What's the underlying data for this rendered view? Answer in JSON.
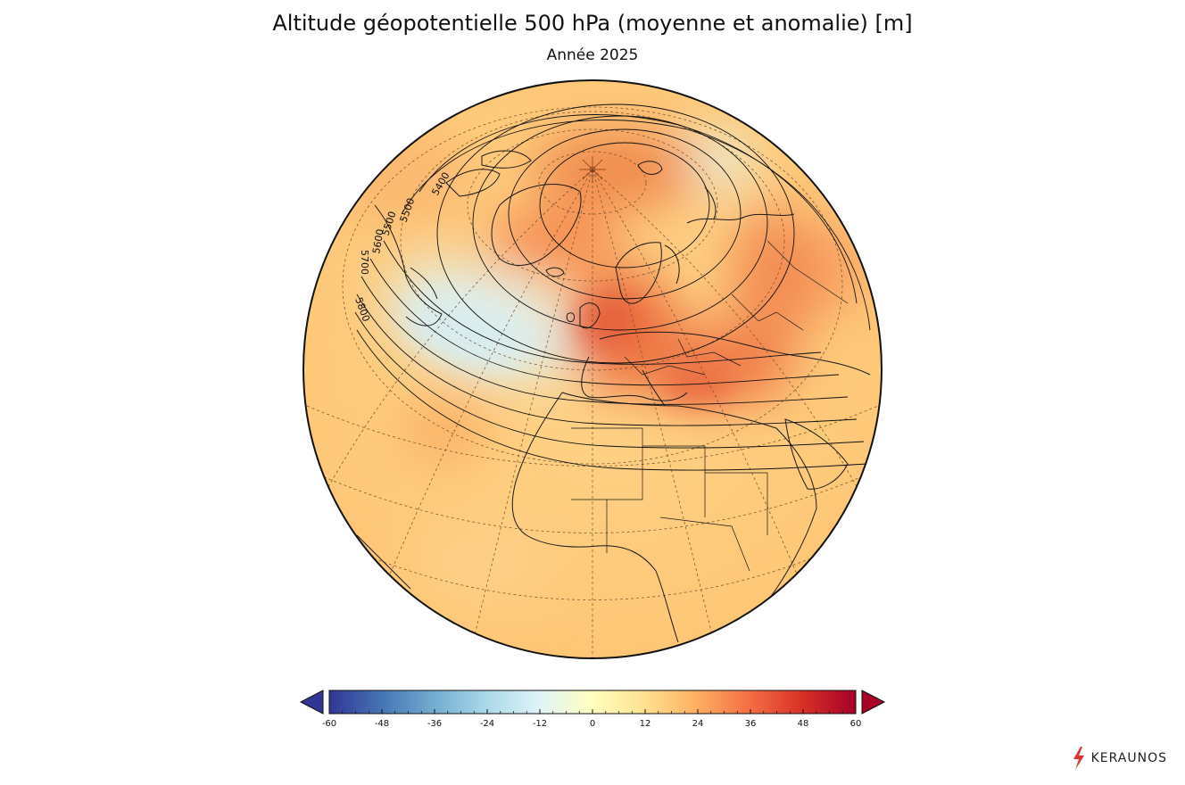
{
  "title": "Altitude géopotentielle 500 hPa (moyenne et anomalie) [m]",
  "subtitle": "Année 2025",
  "colorbar": {
    "min": -60,
    "max": 60,
    "ticks": [
      "-60",
      "-48",
      "-36",
      "-24",
      "-12",
      "0",
      "12",
      "24",
      "36",
      "48",
      "60"
    ],
    "colors": [
      "#313695",
      "#4575b4",
      "#74add1",
      "#abd9e9",
      "#e0f3f8",
      "#ffffbf",
      "#fee090",
      "#fdae61",
      "#f46d43",
      "#d73027",
      "#a50026"
    ],
    "extend": "both"
  },
  "contour_labels": [
    "5400",
    "5500",
    "5500",
    "5600",
    "5700",
    "5800"
  ],
  "logo": {
    "text": "KERAUNOS",
    "accent": "#e03030"
  }
}
